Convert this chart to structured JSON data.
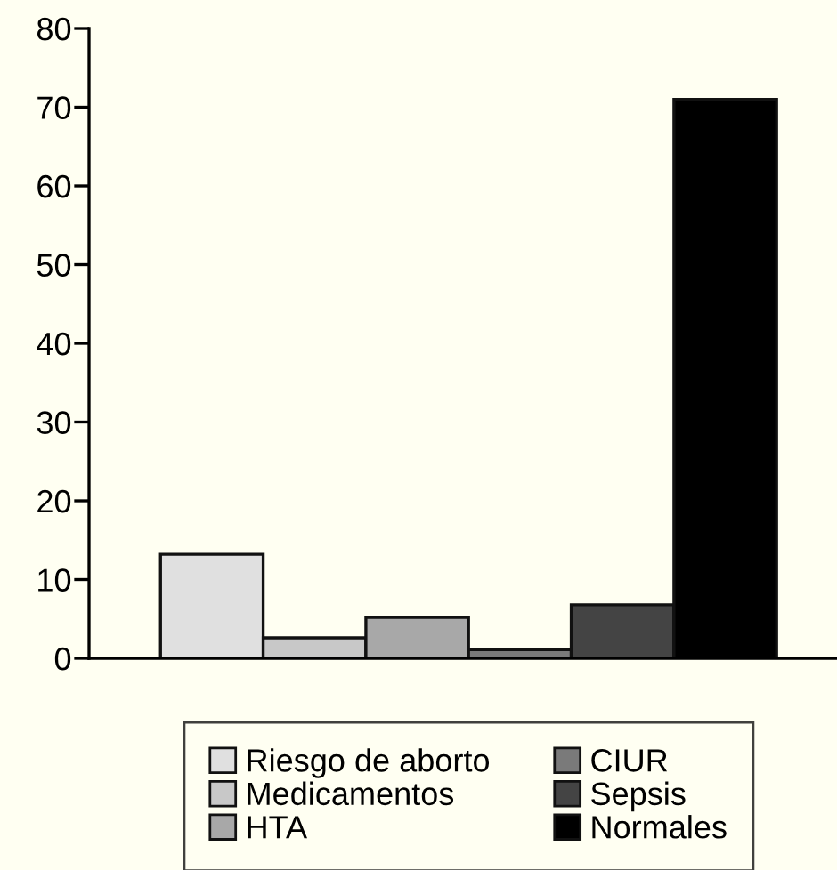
{
  "chart_data": {
    "type": "bar",
    "categories": [
      null
    ],
    "series": [
      {
        "name": "Riesgo de aborto",
        "color": "#e0e0e0",
        "values": [
          13.2
        ]
      },
      {
        "name": "Medicamentos",
        "color": "#c8c8c8",
        "values": [
          2.6
        ]
      },
      {
        "name": "HTA",
        "color": "#a8a8a8",
        "values": [
          5.2
        ]
      },
      {
        "name": "CIUR",
        "color": "#7a7a7a",
        "values": [
          1.1
        ]
      },
      {
        "name": "Sepsis",
        "color": "#444444",
        "values": [
          6.8
        ]
      },
      {
        "name": "Normales",
        "color": "#000000",
        "values": [
          71
        ]
      }
    ],
    "ylim": [
      0,
      80
    ],
    "yticks": [
      0,
      10,
      20,
      30,
      40,
      50,
      60,
      70,
      80
    ],
    "grid": false,
    "legend": "bottom"
  }
}
